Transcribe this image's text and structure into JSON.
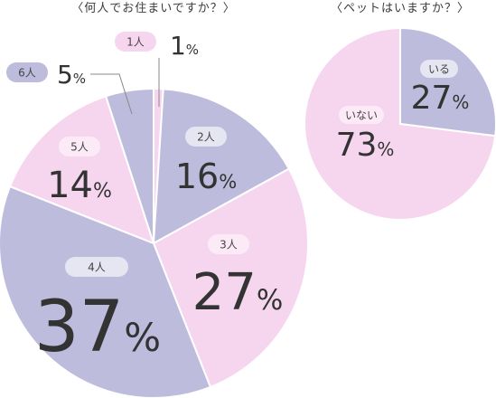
{
  "colors": {
    "lavender": "#bdbcdd",
    "pink": "#f6d6ef",
    "pill_on_lavender": "#e6e5f2",
    "pill_on_pink": "#fcebf7",
    "stroke": "#ffffff",
    "text": "#333333"
  },
  "chart_data": [
    {
      "type": "pie",
      "title": "〈何人でお住まいですか？〉",
      "percent_symbol": "%",
      "slices": [
        {
          "label": "1人",
          "value": 1,
          "color": "pink"
        },
        {
          "label": "2人",
          "value": 16,
          "color": "lavender"
        },
        {
          "label": "3人",
          "value": 27,
          "color": "pink"
        },
        {
          "label": "4人",
          "value": 37,
          "color": "lavender"
        },
        {
          "label": "5人",
          "value": 14,
          "color": "pink"
        },
        {
          "label": "6人",
          "value": 5,
          "color": "lavender"
        }
      ]
    },
    {
      "type": "pie",
      "title": "〈ペットはいますか？〉",
      "percent_symbol": "%",
      "slices": [
        {
          "label": "いる",
          "value": 27,
          "color": "lavender"
        },
        {
          "label": "いない",
          "value": 73,
          "color": "pink"
        }
      ]
    }
  ]
}
